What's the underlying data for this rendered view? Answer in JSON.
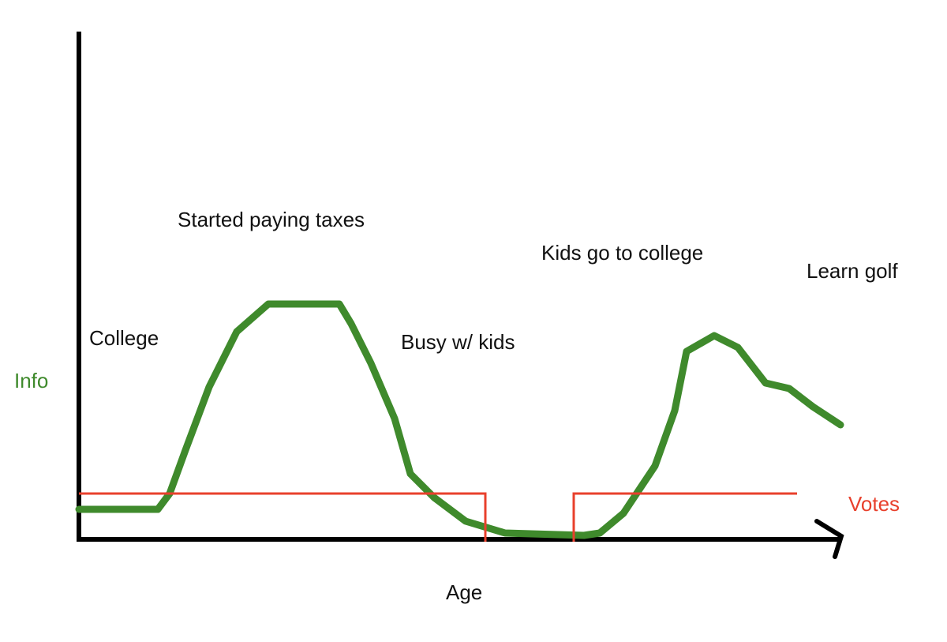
{
  "axes": {
    "y_label": "Info",
    "x_label": "Age",
    "series_label": "Votes"
  },
  "annotations": [
    "Started paying taxes",
    "Kids go to college",
    "Learn golf",
    "College",
    "Busy w/ kids"
  ]
}
